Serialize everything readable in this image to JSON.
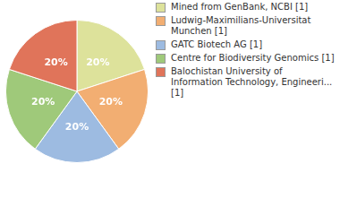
{
  "chart_data": {
    "type": "pie",
    "categories": [
      "Mined from GenBank, NCBI [1]",
      "Ludwig-Maximilians-Universitat Munchen [1]",
      "GATC Biotech AG [1]",
      "Centre for Biodiversity Genomics [1]",
      "Balochistan University of Information Technology, Engineeri... [1]"
    ],
    "values": [
      20,
      20,
      20,
      20,
      20
    ],
    "value_labels": [
      "20%",
      "20%",
      "20%",
      "20%",
      "20%"
    ],
    "colors": [
      "#dde29b",
      "#f2ae72",
      "#9dbbe1",
      "#9fc97a",
      "#e0745a"
    ],
    "data_labels": true,
    "legend": "right"
  }
}
